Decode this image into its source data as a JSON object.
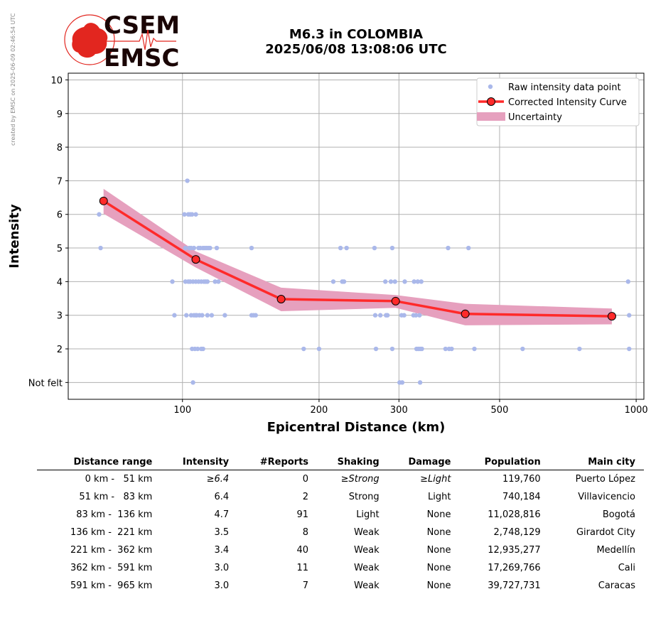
{
  "credit": "created by EMSC on 2025-06-09 02:46:54 UTC",
  "logo": {
    "line1": "CSEM",
    "line2": "EMSC"
  },
  "title": {
    "line1": "M6.3 in COLOMBIA",
    "line2": "2025/06/08 13:08:06 UTC"
  },
  "colors": {
    "raw": "#aab8ea",
    "curve": "#ff2a2a",
    "uncertainty": "#e6a0be",
    "grid": "#b0b0b0",
    "logo_red": "#e2261f",
    "logo_dark": "#1a0505"
  },
  "chart_data": {
    "type": "scatter",
    "xlabel": "Epicentral Distance (km)",
    "ylabel": "Intensity",
    "xscale": "log",
    "xlim": [
      56,
      1040
    ],
    "ylim": [
      0.5,
      10.2
    ],
    "grid": true,
    "legend_placement": "top-right",
    "x_ticks": [
      {
        "value": 100,
        "label": "100"
      },
      {
        "value": 200,
        "label": "200"
      },
      {
        "value": 300,
        "label": "300"
      },
      {
        "value": 500,
        "label": "500"
      },
      {
        "value": 1000,
        "label": "1000"
      }
    ],
    "y_ticks": [
      {
        "value": 1,
        "label": "Not felt"
      },
      {
        "value": 2,
        "label": "2"
      },
      {
        "value": 3,
        "label": "3"
      },
      {
        "value": 4,
        "label": "4"
      },
      {
        "value": 5,
        "label": "5"
      },
      {
        "value": 6,
        "label": "6"
      },
      {
        "value": 7,
        "label": "7"
      },
      {
        "value": 8,
        "label": "8"
      },
      {
        "value": 9,
        "label": "9"
      },
      {
        "value": 10,
        "label": "10"
      }
    ],
    "legend": [
      "Raw intensity data point",
      "Corrected Intensity Curve",
      "Uncertainty"
    ],
    "series": [
      {
        "type": "scatter",
        "points": [
          [
            65.5,
            6
          ],
          [
            66,
            5
          ],
          [
            95,
            4
          ],
          [
            96,
            3
          ],
          [
            101,
            6
          ],
          [
            101.5,
            4
          ],
          [
            101.5,
            5
          ],
          [
            102,
            3
          ],
          [
            102.5,
            7
          ],
          [
            103,
            6
          ],
          [
            103,
            4
          ],
          [
            103.5,
            5
          ],
          [
            104,
            6
          ],
          [
            104,
            4
          ],
          [
            104.5,
            5
          ],
          [
            104.5,
            3
          ],
          [
            105,
            2
          ],
          [
            105,
            6
          ],
          [
            105.5,
            4
          ],
          [
            105.5,
            1
          ],
          [
            106,
            5
          ],
          [
            106,
            3
          ],
          [
            106.5,
            2
          ],
          [
            107,
            6
          ],
          [
            107,
            4
          ],
          [
            107,
            3
          ],
          [
            107.5,
            3
          ],
          [
            108,
            2
          ],
          [
            108.5,
            5
          ],
          [
            108.5,
            4
          ],
          [
            109,
            3
          ],
          [
            109.5,
            5
          ],
          [
            110,
            4
          ],
          [
            110,
            2
          ],
          [
            110.5,
            3
          ],
          [
            111,
            2
          ],
          [
            111,
            5
          ],
          [
            111.5,
            4
          ],
          [
            112,
            5
          ],
          [
            112.5,
            4
          ],
          [
            113,
            5
          ],
          [
            113.5,
            4
          ],
          [
            113.5,
            3
          ],
          [
            114,
            5
          ],
          [
            115,
            5
          ],
          [
            116,
            3
          ],
          [
            118,
            4
          ],
          [
            119,
            5
          ],
          [
            120,
            4
          ],
          [
            124,
            3
          ],
          [
            142,
            5
          ],
          [
            142,
            3
          ],
          [
            143.5,
            3
          ],
          [
            145,
            3
          ],
          [
            185,
            2
          ],
          [
            200,
            2
          ],
          [
            215,
            4
          ],
          [
            223,
            5
          ],
          [
            225,
            4
          ],
          [
            227,
            4
          ],
          [
            230,
            5
          ],
          [
            265,
            5
          ],
          [
            266,
            3
          ],
          [
            267,
            2
          ],
          [
            273,
            3
          ],
          [
            280,
            4
          ],
          [
            281,
            3
          ],
          [
            283,
            3
          ],
          [
            288,
            4
          ],
          [
            290,
            2
          ],
          [
            290,
            5
          ],
          [
            294,
            4
          ],
          [
            301,
            1
          ],
          [
            304,
            3
          ],
          [
            305,
            1
          ],
          [
            308,
            3
          ],
          [
            309,
            4
          ],
          [
            323,
            3
          ],
          [
            324,
            4
          ],
          [
            327,
            3
          ],
          [
            328,
            2
          ],
          [
            330,
            4
          ],
          [
            331,
            2
          ],
          [
            333,
            3
          ],
          [
            334,
            2
          ],
          [
            334,
            1
          ],
          [
            336,
            4
          ],
          [
            337,
            2
          ],
          [
            380,
            2
          ],
          [
            385,
            5
          ],
          [
            387,
            2
          ],
          [
            392,
            2
          ],
          [
            427,
            5
          ],
          [
            440,
            2
          ],
          [
            562,
            2
          ],
          [
            750,
            2
          ],
          [
            960,
            4
          ],
          [
            965,
            3
          ],
          [
            965,
            2
          ]
        ]
      },
      {
        "type": "line",
        "points": [
          [
            67,
            6.4
          ],
          [
            107,
            4.66
          ],
          [
            165,
            3.48
          ],
          [
            295,
            3.42
          ],
          [
            420,
            3.04
          ],
          [
            884,
            2.97
          ]
        ],
        "upper": [
          6.76,
          4.9,
          3.82,
          3.6,
          3.34,
          3.2
        ],
        "lower": [
          6.02,
          4.42,
          3.12,
          3.22,
          2.7,
          2.73
        ]
      }
    ]
  },
  "table": {
    "headers": [
      "Distance range",
      "Intensity",
      "#Reports",
      "Shaking",
      "Damage",
      "Population",
      "Main city"
    ],
    "rows": [
      {
        "range": "0 km -   51 km",
        "intensity": "≥6.4",
        "reports": "0",
        "shaking": "≥Strong",
        "damage": "≥Light",
        "population": "119,760",
        "city": "Puerto López",
        "italic": true
      },
      {
        "range": "51 km -   83 km",
        "intensity": "6.4",
        "reports": "2",
        "shaking": "Strong",
        "damage": "Light",
        "population": "740,184",
        "city": "Villavicencio",
        "italic": false
      },
      {
        "range": "83 km -  136 km",
        "intensity": "4.7",
        "reports": "91",
        "shaking": "Light",
        "damage": "None",
        "population": "11,028,816",
        "city": "Bogotá",
        "italic": false
      },
      {
        "range": "136 km -  221 km",
        "intensity": "3.5",
        "reports": "8",
        "shaking": "Weak",
        "damage": "None",
        "population": "2,748,129",
        "city": "Girardot City",
        "italic": false
      },
      {
        "range": "221 km -  362 km",
        "intensity": "3.4",
        "reports": "40",
        "shaking": "Weak",
        "damage": "None",
        "population": "12,935,277",
        "city": "Medellín",
        "italic": false
      },
      {
        "range": "362 km -  591 km",
        "intensity": "3.0",
        "reports": "11",
        "shaking": "Weak",
        "damage": "None",
        "population": "17,269,766",
        "city": "Cali",
        "italic": false
      },
      {
        "range": "591 km -  965 km",
        "intensity": "3.0",
        "reports": "7",
        "shaking": "Weak",
        "damage": "None",
        "population": "39,727,731",
        "city": "Caracas",
        "italic": false
      }
    ]
  }
}
